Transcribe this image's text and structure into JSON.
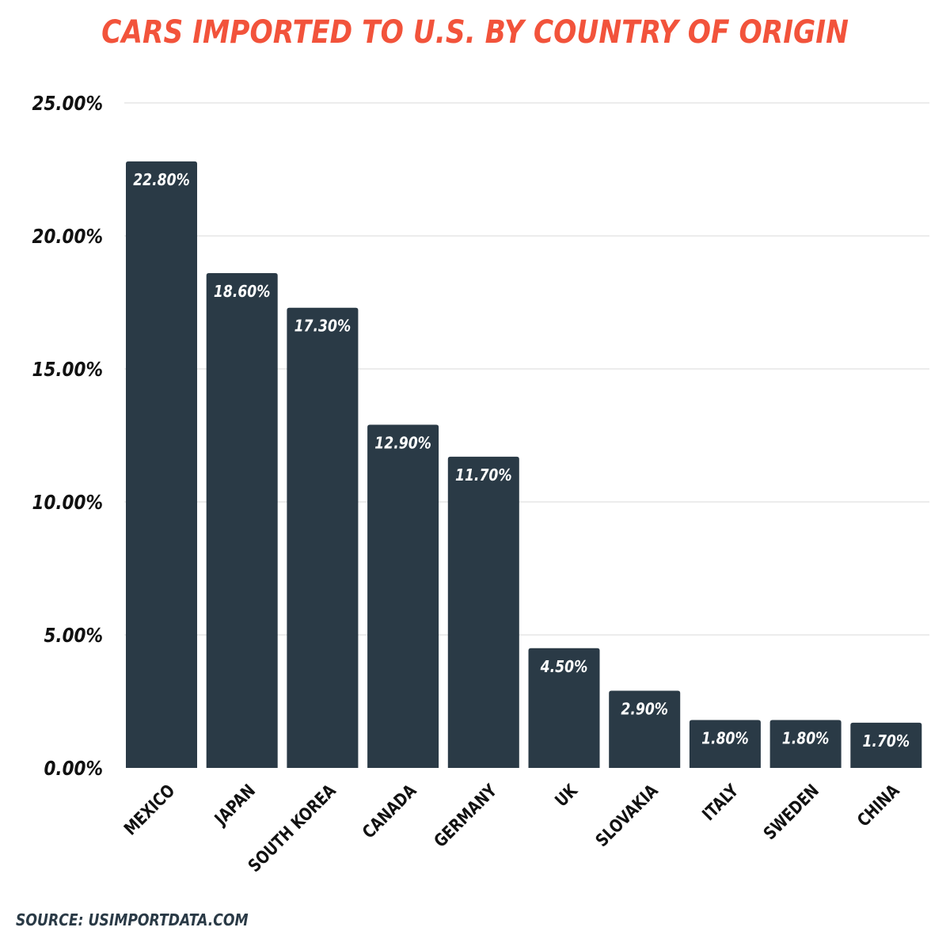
{
  "chart_data": {
    "type": "bar",
    "title": "CARS IMPORTED TO U.S. BY COUNTRY OF ORIGIN",
    "source": "SOURCE: USIMPORTDATA.COM",
    "categories": [
      "MEXICO",
      "JAPAN",
      "SOUTH KOREA",
      "CANADA",
      "GERMANY",
      "UK",
      "SLOVAKIA",
      "ITALY",
      "SWEDEN",
      "CHINA"
    ],
    "values": [
      22.8,
      18.6,
      17.3,
      12.9,
      11.7,
      4.5,
      2.9,
      1.8,
      1.8,
      1.7
    ],
    "data_labels": [
      "22.80%",
      "18.60%",
      "17.30%",
      "12.90%",
      "11.70%",
      "4.50%",
      "2.90%",
      "1.80%",
      "1.80%",
      "1.70%"
    ],
    "yticks": [
      0,
      5,
      10,
      15,
      20,
      25
    ],
    "ytick_labels": [
      "0.00%",
      "5.00%",
      "10.00%",
      "15.00%",
      "20.00%",
      "25.00%"
    ],
    "ylim": [
      0,
      25
    ],
    "xlabel": "",
    "ylabel": "",
    "grid": true,
    "bar_color": "#2a3a46",
    "title_color": "#f2533b",
    "label_color": "#ffffff"
  }
}
